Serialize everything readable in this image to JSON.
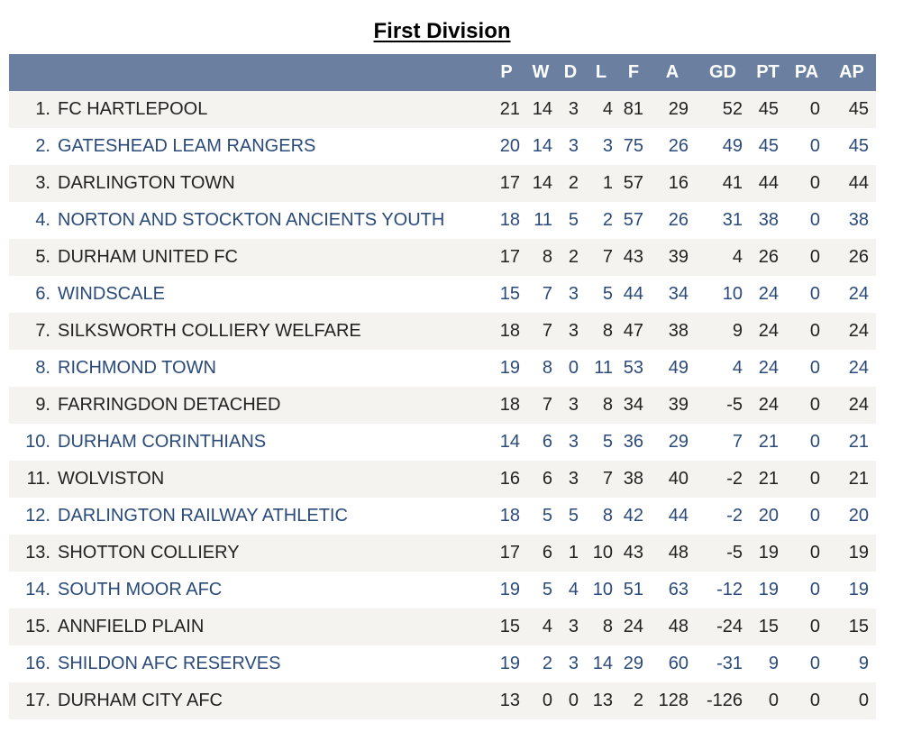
{
  "title": "First Division",
  "columns": [
    "P",
    "W",
    "D",
    "L",
    "F",
    "A",
    "GD",
    "PT",
    "PA",
    "AP"
  ],
  "rows": [
    {
      "pos": "1.",
      "team": "FC HARTLEPOOL",
      "P": "21",
      "W": "14",
      "D": "3",
      "L": "4",
      "F": "81",
      "A": "29",
      "GD": "52",
      "PT": "45",
      "PA": "0",
      "AP": "45"
    },
    {
      "pos": "2.",
      "team": "GATESHEAD LEAM RANGERS",
      "P": "20",
      "W": "14",
      "D": "3",
      "L": "3",
      "F": "75",
      "A": "26",
      "GD": "49",
      "PT": "45",
      "PA": "0",
      "AP": "45"
    },
    {
      "pos": "3.",
      "team": "DARLINGTON TOWN",
      "P": "17",
      "W": "14",
      "D": "2",
      "L": "1",
      "F": "57",
      "A": "16",
      "GD": "41",
      "PT": "44",
      "PA": "0",
      "AP": "44"
    },
    {
      "pos": "4.",
      "team": "NORTON AND STOCKTON ANCIENTS YOUTH",
      "P": "18",
      "W": "11",
      "D": "5",
      "L": "2",
      "F": "57",
      "A": "26",
      "GD": "31",
      "PT": "38",
      "PA": "0",
      "AP": "38"
    },
    {
      "pos": "5.",
      "team": "DURHAM UNITED FC",
      "P": "17",
      "W": "8",
      "D": "2",
      "L": "7",
      "F": "43",
      "A": "39",
      "GD": "4",
      "PT": "26",
      "PA": "0",
      "AP": "26"
    },
    {
      "pos": "6.",
      "team": "WINDSCALE",
      "P": "15",
      "W": "7",
      "D": "3",
      "L": "5",
      "F": "44",
      "A": "34",
      "GD": "10",
      "PT": "24",
      "PA": "0",
      "AP": "24"
    },
    {
      "pos": "7.",
      "team": "SILKSWORTH COLLIERY WELFARE",
      "P": "18",
      "W": "7",
      "D": "3",
      "L": "8",
      "F": "47",
      "A": "38",
      "GD": "9",
      "PT": "24",
      "PA": "0",
      "AP": "24"
    },
    {
      "pos": "8.",
      "team": "RICHMOND TOWN",
      "P": "19",
      "W": "8",
      "D": "0",
      "L": "11",
      "F": "53",
      "A": "49",
      "GD": "4",
      "PT": "24",
      "PA": "0",
      "AP": "24"
    },
    {
      "pos": "9.",
      "team": "FARRINGDON DETACHED",
      "P": "18",
      "W": "7",
      "D": "3",
      "L": "8",
      "F": "34",
      "A": "39",
      "GD": "-5",
      "PT": "24",
      "PA": "0",
      "AP": "24"
    },
    {
      "pos": "10.",
      "team": "DURHAM CORINTHIANS",
      "P": "14",
      "W": "6",
      "D": "3",
      "L": "5",
      "F": "36",
      "A": "29",
      "GD": "7",
      "PT": "21",
      "PA": "0",
      "AP": "21"
    },
    {
      "pos": "11.",
      "team": "WOLVISTON",
      "P": "16",
      "W": "6",
      "D": "3",
      "L": "7",
      "F": "38",
      "A": "40",
      "GD": "-2",
      "PT": "21",
      "PA": "0",
      "AP": "21"
    },
    {
      "pos": "12.",
      "team": "DARLINGTON RAILWAY ATHLETIC",
      "P": "18",
      "W": "5",
      "D": "5",
      "L": "8",
      "F": "42",
      "A": "44",
      "GD": "-2",
      "PT": "20",
      "PA": "0",
      "AP": "20"
    },
    {
      "pos": "13.",
      "team": "SHOTTON COLLIERY",
      "P": "17",
      "W": "6",
      "D": "1",
      "L": "10",
      "F": "43",
      "A": "48",
      "GD": "-5",
      "PT": "19",
      "PA": "0",
      "AP": "19"
    },
    {
      "pos": "14.",
      "team": "SOUTH MOOR AFC",
      "P": "19",
      "W": "5",
      "D": "4",
      "L": "10",
      "F": "51",
      "A": "63",
      "GD": "-12",
      "PT": "19",
      "PA": "0",
      "AP": "19"
    },
    {
      "pos": "15.",
      "team": "ANNFIELD PLAIN",
      "P": "15",
      "W": "4",
      "D": "3",
      "L": "8",
      "F": "24",
      "A": "48",
      "GD": "-24",
      "PT": "15",
      "PA": "0",
      "AP": "15"
    },
    {
      "pos": "16.",
      "team": "SHILDON AFC RESERVES",
      "P": "19",
      "W": "2",
      "D": "3",
      "L": "14",
      "F": "29",
      "A": "60",
      "GD": "-31",
      "PT": "9",
      "PA": "0",
      "AP": "9"
    },
    {
      "pos": "17.",
      "team": "DURHAM CITY AFC",
      "P": "13",
      "W": "0",
      "D": "0",
      "L": "13",
      "F": "2",
      "A": "128",
      "GD": "-126",
      "PT": "0",
      "PA": "0",
      "AP": "0"
    }
  ],
  "colors": {
    "header_bg": "#6b80a0",
    "odd_row_bg": "#f4f3ef",
    "odd_row_text": "#222222",
    "even_row_text": "#2a4a7a"
  }
}
